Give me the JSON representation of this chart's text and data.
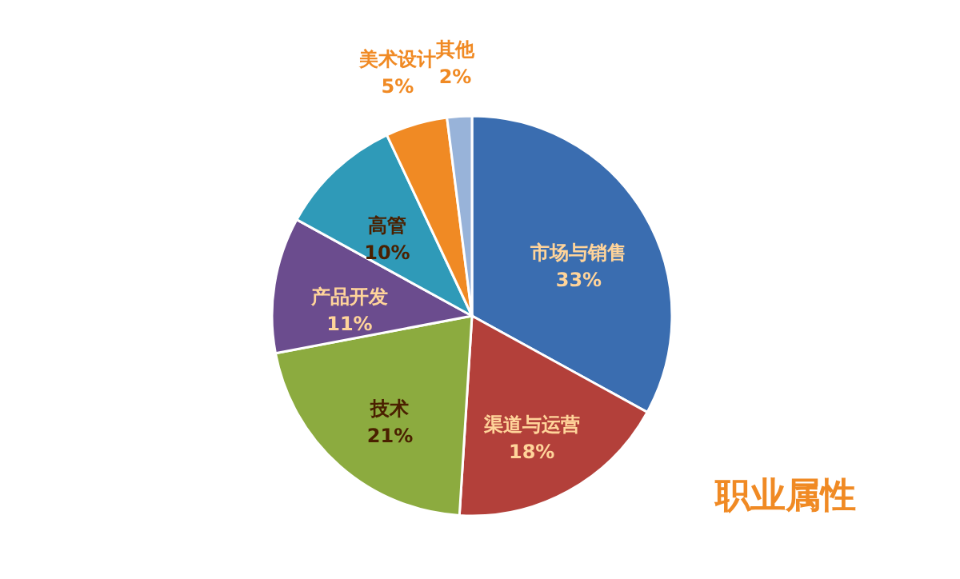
{
  "chart_data": {
    "type": "pie",
    "title": "职业属性",
    "categories": [
      "市场与销售",
      "渠道与运营",
      "技术",
      "产品开发",
      "高管",
      "美术设计",
      "其他"
    ],
    "values": [
      33,
      18,
      21,
      11,
      10,
      5,
      2
    ],
    "value_labels": [
      "33%",
      "18%",
      "21%",
      "11%",
      "10%",
      "5%",
      "2%"
    ],
    "colors": [
      "#3a6db0",
      "#b3403a",
      "#8cab3f",
      "#6b4c8e",
      "#2f9ab8",
      "#f08a24",
      "#98b3d9"
    ],
    "legend": false
  }
}
